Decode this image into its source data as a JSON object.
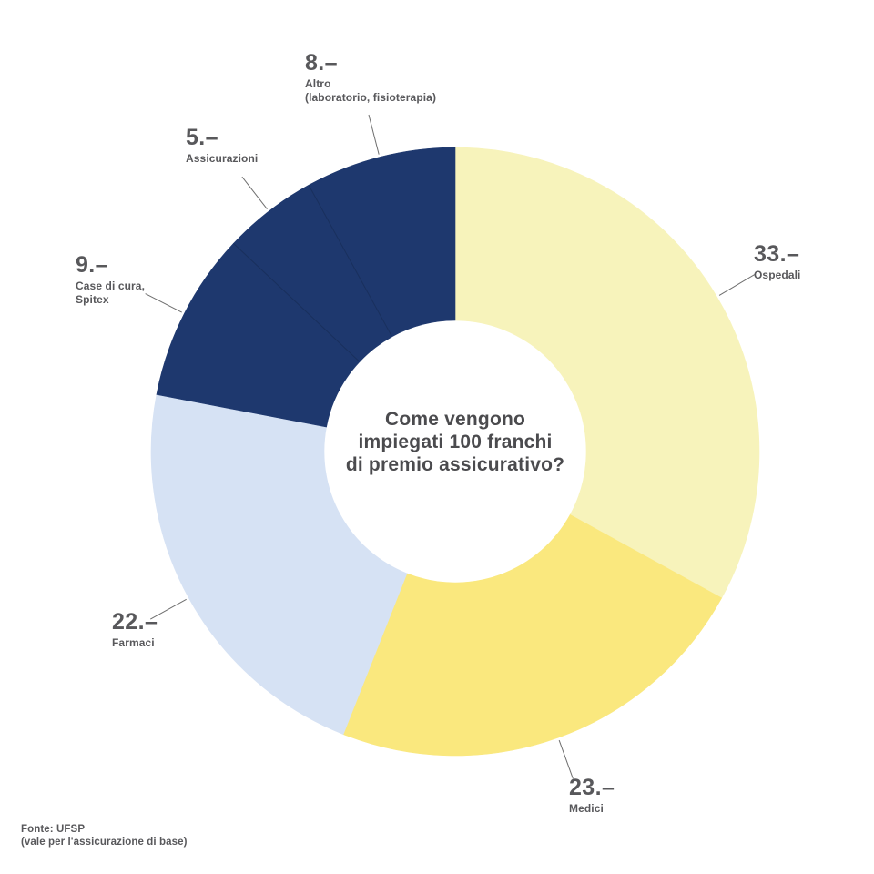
{
  "page": {
    "background": "#ffffff"
  },
  "colors": {
    "navy": "#1e386e",
    "pale_yellow": "#f7f3bb",
    "yellow": "#fae87e",
    "light_blue": "#d6e2f4",
    "label_text": "#58585b",
    "center_text": "#4b4b4e",
    "leader_line": "#6e6e6e",
    "separator": "#16294d"
  },
  "center_text": {
    "lines": [
      "Come vengono",
      "impiegati 100 franchi",
      "di premio assicurativo?"
    ]
  },
  "footer": {
    "source_label": "Fonte: UFSP",
    "source_note": "(vale per l'assicurazione di base)"
  },
  "chart_data": {
    "type": "pie",
    "subtype": "donut",
    "title": "Come vengono impiegati 100 franchi di premio assicurativo?",
    "unit": "franchi (CHF)",
    "total": 100,
    "start_angle_deg": 0,
    "direction": "clockwise",
    "inner_radius_ratio": 0.43,
    "legend_position": "around-chart",
    "grid": false,
    "segments": [
      {
        "label": "Ospedali",
        "label_lines": [
          "Ospedali"
        ],
        "value": 33,
        "value_label": "33.–",
        "color": "#f7f3bb"
      },
      {
        "label": "Medici",
        "label_lines": [
          "Medici"
        ],
        "value": 23,
        "value_label": "23.–",
        "color": "#fae87e"
      },
      {
        "label": "Farmaci",
        "label_lines": [
          "Farmaci"
        ],
        "value": 22,
        "value_label": "22.–",
        "color": "#d6e2f4"
      },
      {
        "label": "Case di cura, Spitex",
        "label_lines": [
          "Case di cura,",
          "Spitex"
        ],
        "value": 9,
        "value_label": "9.–",
        "color": "#1e386e"
      },
      {
        "label": "Assicurazioni",
        "label_lines": [
          "Assicurazioni"
        ],
        "value": 5,
        "value_label": "5.–",
        "color": "#1e386e"
      },
      {
        "label": "Altro (laboratorio, fisioterapia)",
        "label_lines": [
          "Altro",
          "(laboratorio, fisioterapia)"
        ],
        "value": 8,
        "value_label": "8.–",
        "color": "#1e386e"
      }
    ],
    "source": "Fonte: UFSP (vale per l'assicurazione di base)"
  }
}
